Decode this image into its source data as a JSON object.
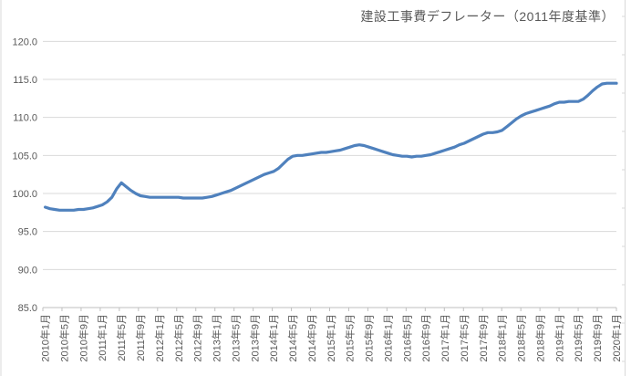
{
  "chart_data": {
    "type": "line",
    "title": "建設工事費デフレーター（2011年度基準）",
    "frequency": "monthly",
    "x_range": [
      "2010年1月",
      "2020年1月"
    ],
    "x_tick_labels": [
      "2010年1月",
      "2010年5月",
      "2010年9月",
      "2011年1月",
      "2011年5月",
      "2011年9月",
      "2012年1月",
      "2012年5月",
      "2012年9月",
      "2013年1月",
      "2013年5月",
      "2013年9月",
      "2014年1月",
      "2014年5月",
      "2014年9月",
      "2015年1月",
      "2015年5月",
      "2015年9月",
      "2016年1月",
      "2016年5月",
      "2016年9月",
      "2017年1月",
      "2017年5月",
      "2017年9月",
      "2018年1月",
      "2018年5月",
      "2018年9月",
      "2019年1月",
      "2019年5月",
      "2019年9月",
      "2020年1月"
    ],
    "x_label_interval_months": 4,
    "y_tick_labels": [
      "120.0",
      "115.0",
      "110.0",
      "105.0",
      "100.0",
      "95.0",
      "90.0",
      "85.0"
    ],
    "ylim": [
      85,
      120
    ],
    "y_step": 5,
    "grid": "horizontal",
    "legend": "none",
    "values": [
      98.2,
      98.0,
      97.9,
      97.8,
      97.8,
      97.8,
      97.8,
      97.9,
      97.9,
      98.0,
      98.1,
      98.3,
      98.5,
      98.9,
      99.5,
      100.6,
      101.4,
      100.9,
      100.4,
      100.0,
      99.7,
      99.6,
      99.5,
      99.5,
      99.5,
      99.5,
      99.5,
      99.5,
      99.5,
      99.4,
      99.4,
      99.4,
      99.4,
      99.4,
      99.5,
      99.6,
      99.8,
      100.0,
      100.2,
      100.4,
      100.7,
      101.0,
      101.3,
      101.6,
      101.9,
      102.2,
      102.5,
      102.7,
      102.9,
      103.3,
      103.9,
      104.5,
      104.9,
      105.0,
      105.0,
      105.1,
      105.2,
      105.3,
      105.4,
      105.4,
      105.5,
      105.6,
      105.7,
      105.9,
      106.1,
      106.3,
      106.4,
      106.3,
      106.1,
      105.9,
      105.7,
      105.5,
      105.3,
      105.1,
      105.0,
      104.9,
      104.9,
      104.8,
      104.9,
      104.9,
      105.0,
      105.1,
      105.3,
      105.5,
      105.7,
      105.9,
      106.1,
      106.4,
      106.6,
      106.9,
      107.2,
      107.5,
      107.8,
      108.0,
      108.0,
      108.1,
      108.3,
      108.8,
      109.3,
      109.8,
      110.2,
      110.5,
      110.7,
      110.9,
      111.1,
      111.3,
      111.5,
      111.8,
      112.0,
      112.0,
      112.1,
      112.1,
      112.1,
      112.4,
      112.9,
      113.5,
      114.0,
      114.4,
      114.5,
      114.5,
      114.5
    ],
    "colors": {
      "line": "#4F81BD",
      "gridline": "#D9D9D9",
      "axis": "#BFBFBF",
      "tick": "#BFBFBF",
      "label": "#595959",
      "title": "#595959",
      "border": "#D9D9D9",
      "background": "#FFFFFF"
    }
  }
}
